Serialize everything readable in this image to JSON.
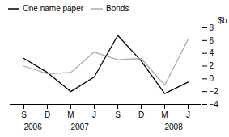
{
  "chart_data": {
    "type": "line",
    "categories": [
      "S",
      "D",
      "M",
      "J",
      "S",
      "D",
      "M",
      "J"
    ],
    "series": [
      {
        "name": "One name paper",
        "color": "#000000",
        "values": [
          3.2,
          1.0,
          -2.0,
          0.3,
          6.8,
          2.8,
          -2.3,
          -0.5
        ]
      },
      {
        "name": "Bonds",
        "color": "#aaaaaa",
        "values": [
          2.0,
          0.8,
          1.0,
          4.2,
          3.0,
          3.2,
          -1.0,
          6.2
        ]
      }
    ],
    "ylabel": "$b",
    "ylim": [
      -4,
      8
    ],
    "yticks": [
      -4,
      -2,
      0,
      2,
      4,
      6,
      8
    ],
    "annotations": [
      {
        "text": "2006",
        "x": 0
      },
      {
        "text": "2007",
        "x": 2
      },
      {
        "text": "2008",
        "x": 6
      }
    ],
    "legend": "upper left",
    "grid": false
  }
}
